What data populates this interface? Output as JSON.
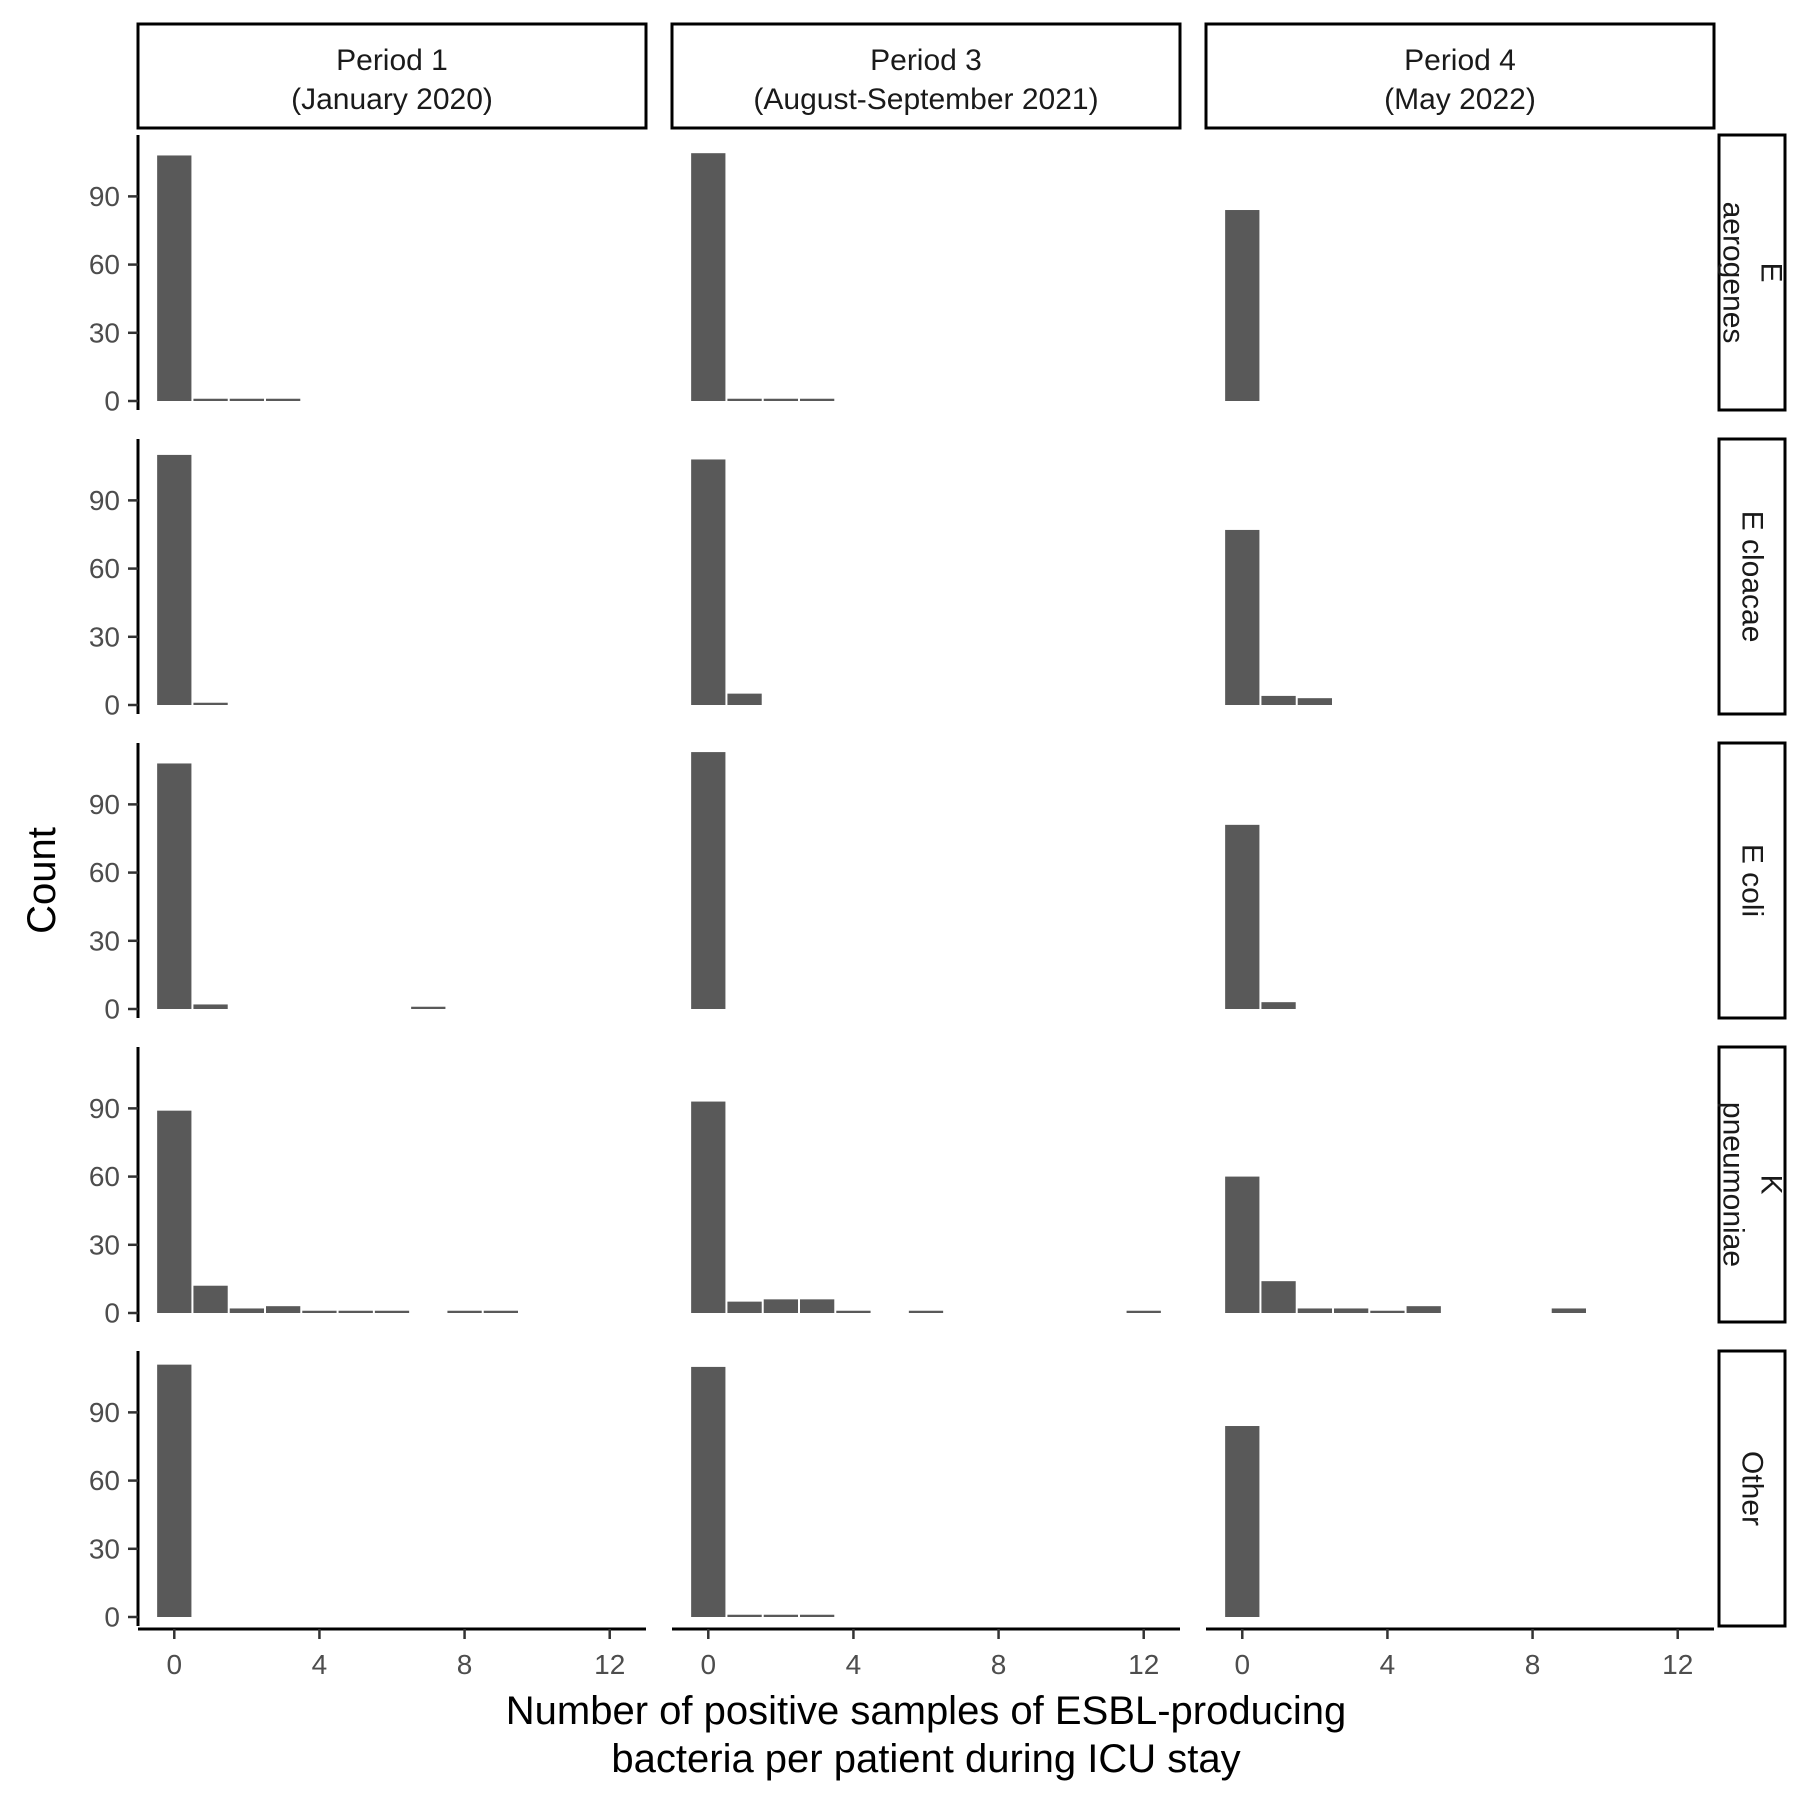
{
  "chart_data": {
    "type": "bar",
    "xlabel": [
      "Number of positive samples of ESBL-producing",
      "bacteria per patient during ICU stay"
    ],
    "ylabel": "Count",
    "x_ticks": [
      0,
      4,
      8,
      12
    ],
    "y_ticks": [
      0,
      30,
      60,
      90
    ],
    "xlim": [
      -1,
      13
    ],
    "ylim": [
      0,
      117
    ],
    "bar_color": "#595959",
    "columns": [
      [
        "Period 1",
        "(January 2020)"
      ],
      [
        "Period 3",
        "(August-September 2021)"
      ],
      [
        "Period 4",
        "(May 2022)"
      ]
    ],
    "rows": [
      [
        "E",
        "aerogenes"
      ],
      [
        "E cloacae"
      ],
      [
        "E coli"
      ],
      [
        "K",
        "pneumoniae"
      ],
      [
        "Other"
      ]
    ],
    "panels": [
      [
        [
          [
            0,
            108
          ],
          [
            1,
            1
          ],
          [
            2,
            1
          ],
          [
            3,
            1
          ]
        ],
        [
          [
            0,
            109
          ],
          [
            1,
            1
          ],
          [
            2,
            1
          ],
          [
            3,
            1
          ]
        ],
        [
          [
            0,
            84
          ]
        ]
      ],
      [
        [
          [
            0,
            110
          ],
          [
            1,
            1
          ]
        ],
        [
          [
            0,
            108
          ],
          [
            1,
            5
          ]
        ],
        [
          [
            0,
            77
          ],
          [
            1,
            4
          ],
          [
            2,
            3
          ]
        ]
      ],
      [
        [
          [
            0,
            108
          ],
          [
            1,
            2
          ],
          [
            7,
            1
          ]
        ],
        [
          [
            0,
            113
          ]
        ],
        [
          [
            0,
            81
          ],
          [
            1,
            3
          ]
        ]
      ],
      [
        [
          [
            0,
            89
          ],
          [
            1,
            12
          ],
          [
            2,
            2
          ],
          [
            3,
            3
          ],
          [
            4,
            1
          ],
          [
            5,
            1
          ],
          [
            6,
            1
          ],
          [
            8,
            1
          ],
          [
            9,
            1
          ]
        ],
        [
          [
            0,
            93
          ],
          [
            1,
            5
          ],
          [
            2,
            6
          ],
          [
            3,
            6
          ],
          [
            4,
            1
          ],
          [
            6,
            1
          ],
          [
            12,
            1
          ]
        ],
        [
          [
            0,
            60
          ],
          [
            1,
            14
          ],
          [
            2,
            2
          ],
          [
            3,
            2
          ],
          [
            4,
            1
          ],
          [
            5,
            3
          ],
          [
            9,
            2
          ]
        ]
      ],
      [
        [
          [
            0,
            111
          ]
        ],
        [
          [
            0,
            110
          ],
          [
            1,
            1
          ],
          [
            2,
            1
          ],
          [
            3,
            1
          ]
        ],
        [
          [
            0,
            84
          ]
        ]
      ]
    ]
  }
}
